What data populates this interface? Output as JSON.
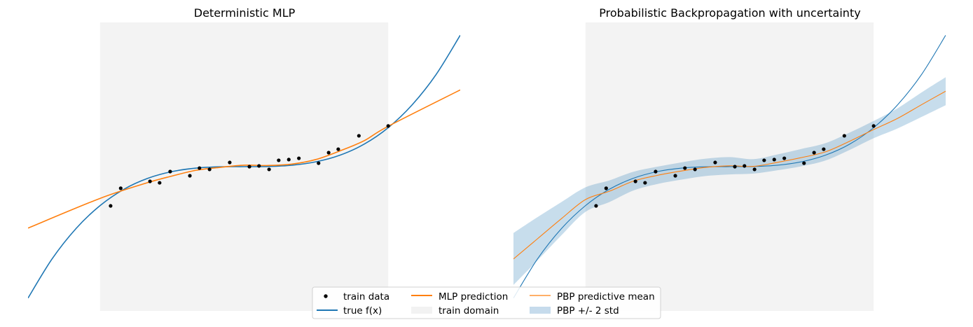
{
  "chart_data": [
    {
      "type": "line",
      "title": "Deterministic MLP",
      "xlim": [
        -4.5,
        4.5
      ],
      "ylim": [
        -100,
        100
      ],
      "axes_visible": false,
      "grid": false,
      "train_domain": [
        -3,
        3
      ],
      "train_data": {
        "x": [
          -2.78,
          -2.57,
          -1.96,
          -1.76,
          -1.54,
          -1.13,
          -0.93,
          -0.72,
          -0.3,
          0.11,
          0.31,
          0.52,
          0.72,
          0.93,
          1.14,
          1.55,
          1.76,
          1.96,
          2.39,
          3.0
        ],
        "y": [
          -27.2,
          -15.0,
          -10.2,
          -11.2,
          -3.4,
          -6.3,
          -1.0,
          -1.9,
          2.9,
          0.0,
          0.5,
          -1.9,
          4.4,
          4.9,
          5.8,
          2.4,
          9.7,
          12.1,
          21.4,
          28.2
        ]
      },
      "series": [
        {
          "name": "true f(x)",
          "color": "#1f77b4",
          "x": [
            -4.5,
            -4,
            -3.5,
            -3,
            -2.5,
            -2,
            -1.5,
            -1,
            -0.5,
            0,
            0.5,
            1,
            1.5,
            2,
            2.5,
            3,
            3.5,
            4,
            4.5
          ],
          "y": [
            -91.1,
            -64,
            -42.9,
            -27,
            -15.6,
            -8,
            -3.4,
            -1,
            -0.1,
            0,
            0.1,
            1,
            3.4,
            8,
            15.6,
            27,
            42.9,
            64,
            91.1
          ]
        },
        {
          "name": "MLP prediction",
          "color": "#ff7f0e",
          "x": [
            -4.5,
            -3,
            -2,
            -1.5,
            -1,
            -0.5,
            0,
            0.5,
            1,
            1.5,
            2,
            2.5,
            3,
            4.5
          ],
          "y": [
            -42.6,
            -22,
            -11,
            -6.5,
            -2.5,
            -0.5,
            1,
            0.8,
            1.8,
            5,
            11,
            18,
            28,
            53.2
          ]
        }
      ]
    },
    {
      "type": "line",
      "title": "Probabilistic Backpropagation with uncertainty",
      "xlim": [
        -4.5,
        4.5
      ],
      "ylim": [
        -100,
        100
      ],
      "axes_visible": false,
      "grid": false,
      "train_domain": [
        -3,
        3
      ],
      "train_data": {
        "x": [
          -2.78,
          -2.57,
          -1.96,
          -1.76,
          -1.54,
          -1.13,
          -0.93,
          -0.72,
          -0.3,
          0.11,
          0.31,
          0.52,
          0.72,
          0.93,
          1.14,
          1.55,
          1.76,
          1.96,
          2.39,
          3.0
        ],
        "y": [
          -27.2,
          -15.0,
          -10.2,
          -11.2,
          -3.4,
          -6.3,
          -1.0,
          -1.9,
          2.9,
          0.0,
          0.5,
          -1.9,
          4.4,
          4.9,
          5.8,
          2.4,
          9.7,
          12.1,
          21.4,
          28.2
        ]
      },
      "series": [
        {
          "name": "true f(x)",
          "color": "#1f77b4",
          "x": [
            -4.5,
            -4,
            -3.5,
            -3,
            -2.5,
            -2,
            -1.5,
            -1,
            -0.5,
            0,
            0.5,
            1,
            1.5,
            2,
            2.5,
            3,
            3.5,
            4,
            4.5
          ],
          "y": [
            -91.1,
            -64,
            -42.9,
            -27,
            -15.6,
            -8,
            -3.4,
            -1,
            -0.1,
            0,
            0.1,
            1,
            3.4,
            8,
            15.6,
            27,
            42.9,
            64,
            91.1
          ]
        },
        {
          "name": "PBP predictive mean",
          "color": "#ff7f0e",
          "x": [
            -4.5,
            -4,
            -3.5,
            -3,
            -2.5,
            -2,
            -1.5,
            -1,
            -0.5,
            0,
            0.5,
            1,
            1.5,
            2,
            2.5,
            3,
            3.5,
            4,
            4.5
          ],
          "y": [
            -64,
            -50,
            -36,
            -22.8,
            -17,
            -10,
            -6,
            -3,
            -0.5,
            0.6,
            0.2,
            3,
            6.3,
            10.3,
            17.6,
            25.7,
            33.5,
            43,
            52.3
          ],
          "two_std": [
            18,
            15,
            11.5,
            8.5,
            7.5,
            6.5,
            6,
            6,
            6,
            6,
            5,
            5.5,
            6,
            6,
            6,
            6,
            7,
            8.5,
            9.7
          ]
        }
      ],
      "band": {
        "name": "PBP +/- 2 std",
        "color": "#1f77b4",
        "alpha": 0.25
      }
    }
  ],
  "legend": {
    "placement": "bottom-center",
    "items": [
      {
        "label": "train data",
        "kind": "marker",
        "color": "#000000"
      },
      {
        "label": "true f(x)",
        "kind": "line",
        "color": "#1f77b4"
      },
      {
        "label": "MLP prediction",
        "kind": "line",
        "color": "#ff7f0e"
      },
      {
        "label": "train domain",
        "kind": "patch",
        "color": "#f2f2f2"
      },
      {
        "label": "PBP predictive mean",
        "kind": "thin-line",
        "color": "#ff7f0e"
      },
      {
        "label": "PBP +/- 2 std",
        "kind": "patch",
        "color": "#c6dbec"
      }
    ]
  }
}
